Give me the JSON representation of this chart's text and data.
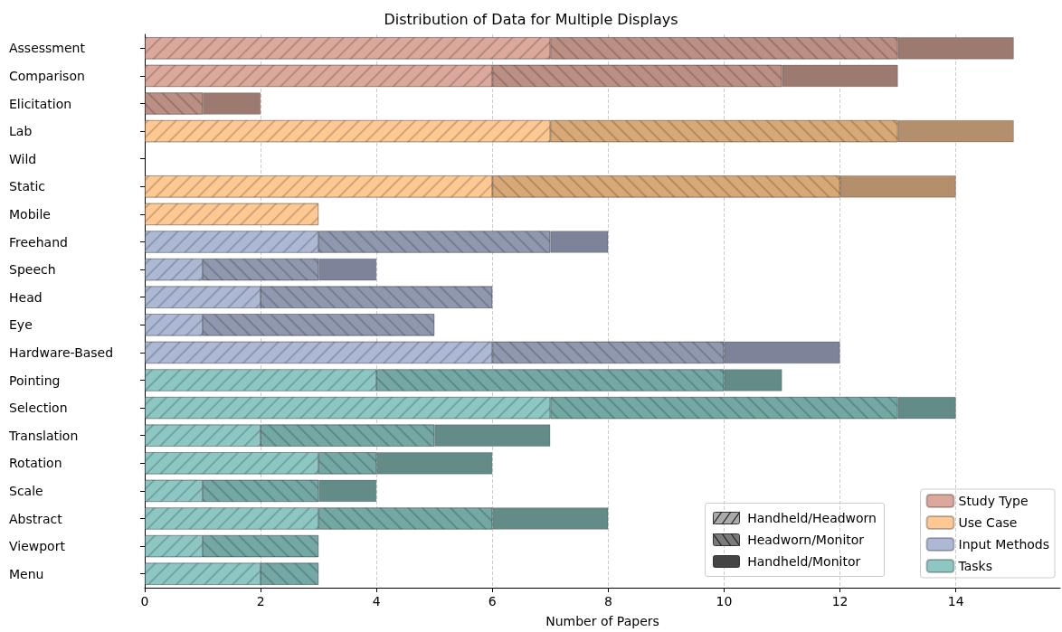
{
  "chart_data": {
    "type": "bar",
    "title": "Distribution of Data for Multiple Displays",
    "xlabel": "Number of Papers",
    "orientation": "horizontal",
    "stacked": true,
    "grid": "x",
    "legend": "bottom right",
    "categories": [
      "Assessment",
      "Comparison",
      "Elicitation",
      "Lab",
      "Wild",
      "Static",
      "Mobile",
      "Freehand",
      "Speech",
      "Head",
      "Eye",
      "Hardware-Based",
      "Pointing",
      "Selection",
      "Translation",
      "Rotation",
      "Scale",
      "Abstract",
      "Viewport",
      "Menu"
    ],
    "xlim": [
      0,
      15.8
    ],
    "xticks": [
      0,
      2,
      4,
      6,
      8,
      10,
      12,
      14
    ],
    "series": [
      {
        "name": "Handheld/Headworn",
        "values": [
          7,
          6,
          0,
          7,
          0,
          6,
          3,
          3,
          1,
          2,
          1,
          6,
          4,
          7,
          2,
          3,
          1,
          3,
          1,
          2
        ],
        "colors": [
          "#dba89b",
          "#dba89b",
          "#dba89b",
          "#fec893",
          "#fec893",
          "#fec893",
          "#fec893",
          "#adb8d4",
          "#adb8d4",
          "#adb8d4",
          "#adb8d4",
          "#adb8d4",
          "#8cc7c3",
          "#8cc7c3",
          "#8cc7c3",
          "#8cc7c3",
          "#8cc7c3",
          "#8cc7c3",
          "#8cc7c3",
          "#8cc7c3"
        ]
      },
      {
        "name": "Headworn/Monitor",
        "values": [
          6,
          5,
          1,
          6,
          0,
          6,
          0,
          4,
          2,
          4,
          4,
          4,
          6,
          6,
          3,
          1,
          2,
          3,
          2,
          1
        ],
        "colors": [
          "#bc8f84",
          "#bc8f84",
          "#bc8f84",
          "#d8a976",
          "#d8a976",
          "#d8a976",
          "#d8a976",
          "#8f98ae",
          "#8f98ae",
          "#8f98ae",
          "#8f98ae",
          "#8f98ae",
          "#73a8a4",
          "#73a8a4",
          "#73a8a4",
          "#73a8a4",
          "#73a8a4",
          "#73a8a4",
          "#73a8a4",
          "#73a8a4"
        ]
      },
      {
        "name": "Handheld/Monitor",
        "values": [
          2,
          2,
          1,
          2,
          0,
          2,
          0,
          1,
          1,
          0,
          0,
          2,
          1,
          1,
          2,
          2,
          1,
          2,
          0,
          0
        ],
        "colors": [
          "#9c7a70",
          "#9c7a70",
          "#9c7a70",
          "#b38f6c",
          "#b38f6c",
          "#b38f6c",
          "#b38f6c",
          "#7d8399",
          "#7d8399",
          "#7d8399",
          "#7d8399",
          "#7d8399",
          "#638c88",
          "#638c88",
          "#638c88",
          "#638c88",
          "#638c88",
          "#638c88",
          "#638c88",
          "#638c88"
        ]
      },
      {
        "name": "Study Type",
        "color": "#dba89b",
        "values": [
          null,
          null,
          null,
          null,
          null,
          null,
          null,
          null,
          null,
          null,
          null,
          null,
          null,
          null,
          null,
          null,
          null,
          null,
          null,
          null
        ]
      },
      {
        "name": "Use Case",
        "color": "#fec893",
        "values": [
          null,
          null,
          null,
          null,
          null,
          null,
          null,
          null,
          null,
          null,
          null,
          null,
          null,
          null,
          null,
          null,
          null,
          null,
          null,
          null
        ]
      },
      {
        "name": "Input Methods",
        "color": "#adb8d4",
        "values": [
          null,
          null,
          null,
          null,
          null,
          null,
          null,
          null,
          null,
          null,
          null,
          null,
          null,
          null,
          null,
          null,
          null,
          null,
          null,
          null
        ]
      },
      {
        "name": "Tasks",
        "color": "#8cc7c3",
        "values": [
          null,
          null,
          null,
          null,
          null,
          null,
          null,
          null,
          null,
          null,
          null,
          null,
          null,
          null,
          null,
          null,
          null,
          null,
          null,
          null
        ]
      }
    ]
  }
}
